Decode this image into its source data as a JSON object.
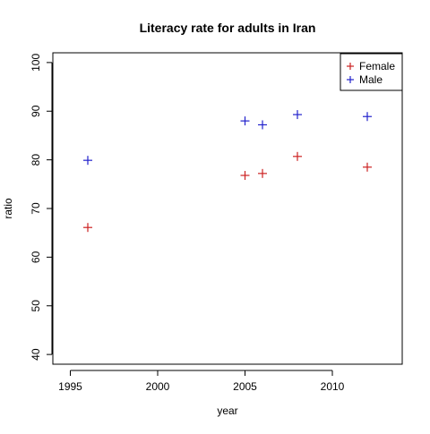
{
  "chart_data": {
    "type": "scatter",
    "title": "Literacy rate for adults in Iran",
    "xlabel": "year",
    "ylabel": "ratio",
    "xlim": [
      1994,
      2014
    ],
    "ylim": [
      38,
      102
    ],
    "xticks": [
      1995,
      2000,
      2005,
      2010
    ],
    "yticks": [
      40,
      50,
      60,
      70,
      80,
      90,
      100
    ],
    "xtick_labels": [
      "1995",
      "2000",
      "2005",
      "2010"
    ],
    "ytick_labels": [
      "40",
      "50",
      "60",
      "70",
      "80",
      "90",
      "100"
    ],
    "marker": "plus",
    "grid": false,
    "legend": {
      "position": "top-right",
      "entries": [
        {
          "name": "Female",
          "color": "#cc2222"
        },
        {
          "name": "Male",
          "color": "#2222cc"
        }
      ]
    },
    "series": [
      {
        "name": "Female",
        "color": "#cc2222",
        "x": [
          1996,
          2005,
          2006,
          2008,
          2012
        ],
        "y": [
          66.1,
          76.8,
          77.2,
          80.7,
          78.5
        ]
      },
      {
        "name": "Male",
        "color": "#2222cc",
        "x": [
          1996,
          2005,
          2006,
          2008,
          2012
        ],
        "y": [
          79.9,
          88.0,
          87.2,
          89.3,
          88.9
        ]
      }
    ]
  }
}
